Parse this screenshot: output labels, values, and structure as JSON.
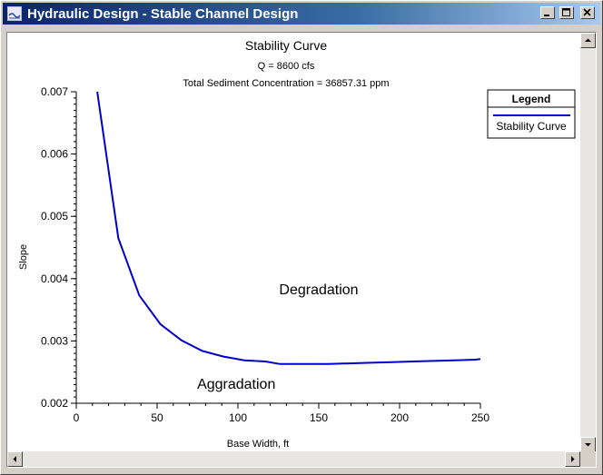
{
  "window": {
    "title": "Hydraulic Design - Stable Channel Design",
    "buttons": {
      "minimize": "minimize",
      "maximize": "maximize",
      "close": "close"
    }
  },
  "chart_data": {
    "type": "line",
    "title": "Stability Curve",
    "subtitle": "Q = 8600 cfs",
    "subtitle2": "Total Sediment Concentration = 36857.31 ppm",
    "xlabel": "Base Width, ft",
    "ylabel": "Slope",
    "xlim": [
      0,
      250
    ],
    "ylim": [
      0.002,
      0.007
    ],
    "xticks": [
      0,
      50,
      100,
      150,
      200,
      250
    ],
    "yticks": [
      0.002,
      0.003,
      0.004,
      0.005,
      0.006,
      0.007
    ],
    "xtick_labels": [
      "0",
      "50",
      "100",
      "150",
      "200",
      "250"
    ],
    "ytick_labels": [
      "0.002",
      "0.003",
      "0.004",
      "0.005",
      "0.006",
      "0.007"
    ],
    "grid": false,
    "legend": {
      "title": "Legend",
      "position": "top-right"
    },
    "series": [
      {
        "name": "Stability Curve",
        "color": "#0000cc",
        "x": [
          13,
          26,
          39,
          52,
          65,
          78,
          91,
          104,
          117,
          126,
          139,
          156,
          169,
          182,
          195,
          208,
          221,
          234,
          247,
          250
        ],
        "y": [
          0.007,
          0.00465,
          0.00373,
          0.00327,
          0.00301,
          0.00284,
          0.00275,
          0.00269,
          0.00267,
          0.00263,
          0.00263,
          0.00263,
          0.00264,
          0.00265,
          0.00266,
          0.00267,
          0.00268,
          0.00269,
          0.0027,
          0.00271
        ]
      }
    ],
    "annotations": [
      {
        "text": "Degradation",
        "x": 150,
        "y": 0.00375
      },
      {
        "text": "Aggradation",
        "x": 99,
        "y": 0.00223
      }
    ]
  }
}
